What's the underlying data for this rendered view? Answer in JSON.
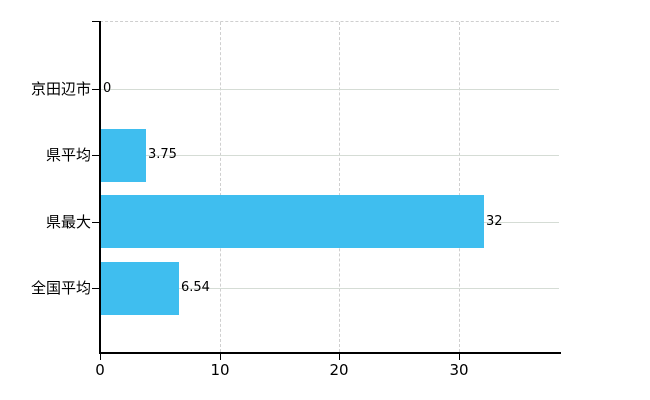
{
  "chart_data": {
    "type": "bar",
    "orientation": "horizontal",
    "title": "",
    "xlabel": "",
    "ylabel": "",
    "categories": [
      "京田辺市",
      "県平均",
      "県最大",
      "全国平均"
    ],
    "values": [
      0,
      3.75,
      32,
      6.54
    ],
    "value_labels": [
      "0",
      "3.75",
      "32",
      "6.54"
    ],
    "xticks": [
      0,
      10,
      20,
      30
    ],
    "xtick_labels": [
      "0",
      "10",
      "20",
      "30"
    ],
    "xlim": [
      0,
      38.4
    ],
    "grid": true,
    "legend": false,
    "colors": {
      "bar": "#3FBEEF",
      "axis": "#000000",
      "gridline": "#D5DCD5",
      "dashed_gridline": "#CFCFCF",
      "text": "#000000",
      "background": "#FFFFFF"
    }
  }
}
